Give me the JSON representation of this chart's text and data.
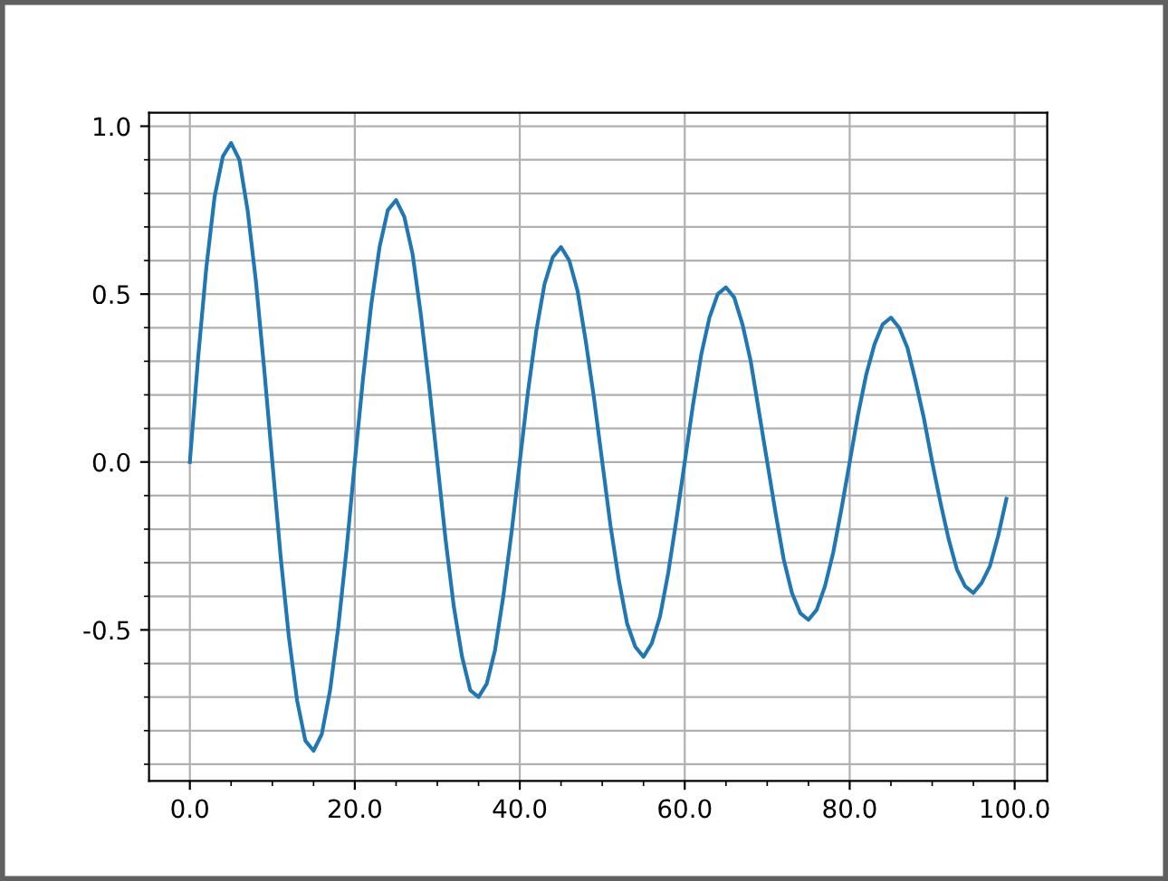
{
  "chart_data": {
    "type": "line",
    "x": [
      0,
      1,
      2,
      3,
      4,
      5,
      6,
      7,
      8,
      9,
      10,
      11,
      12,
      13,
      14,
      15,
      16,
      17,
      18,
      19,
      20,
      21,
      22,
      23,
      24,
      25,
      26,
      27,
      28,
      29,
      30,
      31,
      32,
      33,
      34,
      35,
      36,
      37,
      38,
      39,
      40,
      41,
      42,
      43,
      44,
      45,
      46,
      47,
      48,
      49,
      50,
      51,
      52,
      53,
      54,
      55,
      56,
      57,
      58,
      59,
      60,
      61,
      62,
      63,
      64,
      65,
      66,
      67,
      68,
      69,
      70,
      71,
      72,
      73,
      74,
      75,
      76,
      77,
      78,
      79,
      80,
      81,
      82,
      83,
      84,
      85,
      86,
      87,
      88,
      89,
      90,
      91,
      92,
      93,
      94,
      95,
      96,
      97,
      98,
      99
    ],
    "series": [
      {
        "color": "#1f77b4",
        "values": [
          0,
          0.31,
          0.58,
          0.79,
          0.91,
          0.95,
          0.9,
          0.75,
          0.54,
          0.28,
          0,
          -0.28,
          -0.52,
          -0.71,
          -0.83,
          -0.86,
          -0.81,
          -0.68,
          -0.49,
          -0.26,
          0,
          0.25,
          0.47,
          0.64,
          0.75,
          0.78,
          0.73,
          0.62,
          0.44,
          0.23,
          0,
          -0.23,
          -0.43,
          -0.58,
          -0.68,
          -0.7,
          -0.66,
          -0.56,
          -0.4,
          -0.21,
          0,
          0.21,
          0.39,
          0.53,
          0.61,
          0.64,
          0.6,
          0.51,
          0.36,
          0.19,
          0,
          -0.19,
          -0.35,
          -0.48,
          -0.55,
          -0.58,
          -0.54,
          -0.46,
          -0.33,
          -0.17,
          0,
          0.17,
          0.32,
          0.43,
          0.5,
          0.52,
          0.49,
          0.41,
          0.3,
          0.15,
          0,
          -0.15,
          -0.29,
          -0.39,
          -0.45,
          -0.47,
          -0.44,
          -0.37,
          -0.27,
          -0.14,
          0,
          0.14,
          0.26,
          0.35,
          0.41,
          0.43,
          0.4,
          0.34,
          0.24,
          0.13,
          0,
          -0.12,
          -0.23,
          -0.32,
          -0.37,
          -0.39,
          -0.36,
          -0.31,
          -0.22,
          -0.11
        ]
      }
    ],
    "xlim": [
      -4.95,
      103.95
    ],
    "ylim": [
      -0.95,
      1.04
    ],
    "xticks": [
      {
        "value": 0,
        "label": "0.0"
      },
      {
        "value": 5,
        "label": null
      },
      {
        "value": 10,
        "label": null
      },
      {
        "value": 15,
        "label": null
      },
      {
        "value": 20,
        "label": "20.0"
      },
      {
        "value": 25,
        "label": null
      },
      {
        "value": 30,
        "label": null
      },
      {
        "value": 35,
        "label": null
      },
      {
        "value": 40,
        "label": "40.0"
      },
      {
        "value": 45,
        "label": null
      },
      {
        "value": 50,
        "label": null
      },
      {
        "value": 55,
        "label": null
      },
      {
        "value": 60,
        "label": "60.0"
      },
      {
        "value": 65,
        "label": null
      },
      {
        "value": 70,
        "label": null
      },
      {
        "value": 75,
        "label": null
      },
      {
        "value": 80,
        "label": "80.0"
      },
      {
        "value": 85,
        "label": null
      },
      {
        "value": 90,
        "label": null
      },
      {
        "value": 95,
        "label": null
      },
      {
        "value": 100,
        "label": "100.0"
      }
    ],
    "yticks": [
      {
        "value": -0.9,
        "label": null
      },
      {
        "value": -0.8,
        "label": null
      },
      {
        "value": -0.7,
        "label": null
      },
      {
        "value": -0.6,
        "label": null
      },
      {
        "value": -0.5,
        "label": "-0.5"
      },
      {
        "value": -0.4,
        "label": null
      },
      {
        "value": -0.3,
        "label": null
      },
      {
        "value": -0.2,
        "label": null
      },
      {
        "value": -0.1,
        "label": null
      },
      {
        "value": 0,
        "label": "0.0"
      },
      {
        "value": 0.1,
        "label": null
      },
      {
        "value": 0.2,
        "label": null
      },
      {
        "value": 0.3,
        "label": null
      },
      {
        "value": 0.4,
        "label": null
      },
      {
        "value": 0.5,
        "label": "0.5"
      },
      {
        "value": 0.6,
        "label": null
      },
      {
        "value": 0.7,
        "label": null
      },
      {
        "value": 0.8,
        "label": null
      },
      {
        "value": 0.9,
        "label": null
      },
      {
        "value": 1.0,
        "label": "1.0"
      }
    ],
    "grid": true,
    "line_style": "solid"
  }
}
